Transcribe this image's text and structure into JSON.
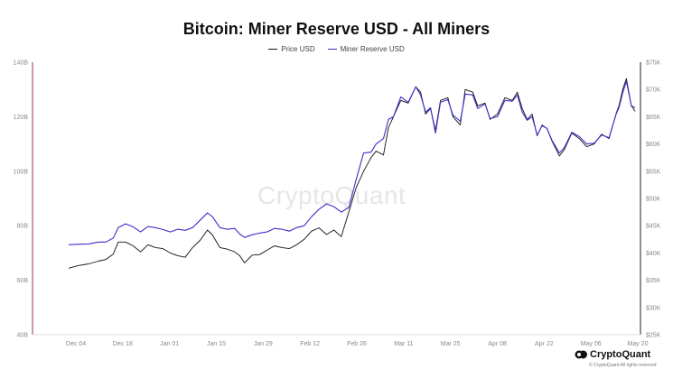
{
  "chart_data": {
    "type": "line",
    "title": "Bitcoin: Miner Reserve USD - All Miners",
    "legend_position": "top-center",
    "watermark": "CryptoQuant",
    "x_ticks": [
      "Dec 04",
      "Dec 18",
      "Jan 01",
      "Jan 15",
      "Jan 29",
      "Feb 12",
      "Feb 26",
      "Mar 11",
      "Mar 25",
      "Apr 08",
      "Apr 22",
      "May 06",
      "May 20"
    ],
    "left_axis": {
      "ticks": [
        "40B",
        "60B",
        "80B",
        "100B",
        "120B",
        "140B"
      ],
      "values": [
        40,
        60,
        80,
        100,
        120,
        140
      ],
      "ylim": [
        40,
        140
      ],
      "unit": "B USD"
    },
    "right_axis": {
      "ticks": [
        "$25K",
        "$30K",
        "$35K",
        "$40K",
        "$45K",
        "$50K",
        "$55K",
        "$60K",
        "$65K",
        "$70K",
        "$75K"
      ],
      "values": [
        25,
        30,
        35,
        40,
        45,
        50,
        55,
        60,
        65,
        70,
        75
      ],
      "ylim": [
        25,
        75
      ],
      "unit": "$K"
    },
    "series": [
      {
        "name": "Price USD",
        "axis": "right",
        "color": "#111111",
        "points": [
          [
            0,
            37.2
          ],
          [
            0.4,
            37.7
          ],
          [
            0.8,
            38.0
          ],
          [
            1.2,
            38.5
          ],
          [
            1.5,
            38.8
          ],
          [
            1.8,
            39.8
          ],
          [
            2.0,
            42.0
          ],
          [
            2.3,
            42.0
          ],
          [
            2.6,
            41.3
          ],
          [
            2.9,
            40.2
          ],
          [
            3.2,
            41.5
          ],
          [
            3.5,
            41.0
          ],
          [
            3.8,
            40.8
          ],
          [
            4.1,
            40.0
          ],
          [
            4.4,
            39.5
          ],
          [
            4.7,
            39.2
          ],
          [
            5.0,
            41.0
          ],
          [
            5.3,
            42.3
          ],
          [
            5.6,
            44.2
          ],
          [
            5.8,
            43.3
          ],
          [
            6.1,
            41.0
          ],
          [
            6.4,
            40.7
          ],
          [
            6.7,
            40.2
          ],
          [
            6.9,
            39.5
          ],
          [
            7.1,
            38.2
          ],
          [
            7.4,
            39.6
          ],
          [
            7.7,
            39.7
          ],
          [
            8.0,
            40.5
          ],
          [
            8.3,
            41.3
          ],
          [
            8.6,
            41.0
          ],
          [
            8.9,
            40.8
          ],
          [
            9.2,
            41.5
          ],
          [
            9.5,
            42.5
          ],
          [
            9.8,
            44.0
          ],
          [
            10.1,
            44.6
          ],
          [
            10.4,
            43.4
          ],
          [
            10.7,
            44.2
          ],
          [
            11.0,
            43.0
          ],
          [
            11.3,
            47.5
          ],
          [
            11.6,
            52.0
          ],
          [
            11.9,
            55.0
          ],
          [
            12.2,
            57.5
          ],
          [
            12.4,
            58.7
          ],
          [
            12.7,
            58.0
          ],
          [
            12.9,
            63.0
          ],
          [
            13.1,
            65.0
          ],
          [
            13.4,
            68.0
          ],
          [
            13.7,
            67.5
          ],
          [
            14.0,
            70.5
          ],
          [
            14.2,
            69.5
          ],
          [
            14.4,
            65.5
          ],
          [
            14.6,
            66.5
          ],
          [
            14.8,
            62.5
          ],
          [
            15.0,
            68.0
          ],
          [
            15.3,
            68.5
          ],
          [
            15.5,
            65.0
          ],
          [
            15.8,
            63.5
          ],
          [
            16.0,
            70.0
          ],
          [
            16.3,
            69.5
          ],
          [
            16.5,
            67.0
          ],
          [
            16.8,
            67.5
          ],
          [
            17.0,
            64.5
          ],
          [
            17.3,
            65.5
          ],
          [
            17.6,
            68.5
          ],
          [
            17.9,
            68.0
          ],
          [
            18.1,
            69.5
          ],
          [
            18.3,
            66.5
          ],
          [
            18.5,
            64.5
          ],
          [
            18.7,
            65.5
          ],
          [
            18.9,
            61.5
          ],
          [
            19.1,
            63.5
          ],
          [
            19.3,
            62.8
          ],
          [
            19.5,
            60.5
          ],
          [
            19.8,
            57.8
          ],
          [
            20.0,
            59.0
          ],
          [
            20.3,
            62.0
          ],
          [
            20.6,
            61.0
          ],
          [
            20.9,
            59.5
          ],
          [
            21.2,
            60.0
          ],
          [
            21.5,
            61.8
          ],
          [
            21.8,
            61.0
          ],
          [
            22.1,
            65.8
          ],
          [
            22.2,
            67.0
          ],
          [
            22.35,
            70.0
          ],
          [
            22.5,
            72.0
          ],
          [
            22.7,
            67.0
          ],
          [
            22.85,
            66.0
          ]
        ]
      },
      {
        "name": "Miner Reserve USD",
        "axis": "left",
        "color": "#3b2fc8",
        "points": [
          [
            0,
            73.0
          ],
          [
            0.4,
            73.2
          ],
          [
            0.8,
            73.3
          ],
          [
            1.2,
            74.0
          ],
          [
            1.5,
            74.0
          ],
          [
            1.8,
            75.5
          ],
          [
            2.0,
            79.3
          ],
          [
            2.3,
            80.7
          ],
          [
            2.6,
            79.6
          ],
          [
            2.9,
            77.7
          ],
          [
            3.2,
            79.7
          ],
          [
            3.5,
            79.3
          ],
          [
            3.8,
            78.6
          ],
          [
            4.1,
            77.7
          ],
          [
            4.4,
            78.7
          ],
          [
            4.7,
            78.3
          ],
          [
            5.0,
            79.3
          ],
          [
            5.3,
            82.0
          ],
          [
            5.6,
            84.7
          ],
          [
            5.8,
            83.3
          ],
          [
            6.1,
            79.3
          ],
          [
            6.4,
            78.7
          ],
          [
            6.7,
            79.0
          ],
          [
            6.9,
            77.0
          ],
          [
            7.1,
            75.7
          ],
          [
            7.4,
            76.7
          ],
          [
            7.7,
            77.3
          ],
          [
            8.0,
            77.7
          ],
          [
            8.3,
            79.0
          ],
          [
            8.6,
            78.7
          ],
          [
            8.9,
            78.0
          ],
          [
            9.2,
            79.3
          ],
          [
            9.5,
            80.0
          ],
          [
            9.8,
            83.3
          ],
          [
            10.1,
            86.0
          ],
          [
            10.4,
            88.0
          ],
          [
            10.7,
            87.0
          ],
          [
            11.0,
            85.0
          ],
          [
            11.3,
            86.7
          ],
          [
            11.6,
            97.0
          ],
          [
            11.9,
            106.7
          ],
          [
            12.2,
            107.0
          ],
          [
            12.4,
            110.0
          ],
          [
            12.7,
            112.0
          ],
          [
            12.9,
            119.0
          ],
          [
            13.1,
            120.0
          ],
          [
            13.4,
            127.3
          ],
          [
            13.7,
            125.3
          ],
          [
            14.0,
            131.0
          ],
          [
            14.2,
            128.0
          ],
          [
            14.4,
            121.7
          ],
          [
            14.6,
            123.3
          ],
          [
            14.8,
            114.0
          ],
          [
            15.0,
            125.3
          ],
          [
            15.3,
            126.3
          ],
          [
            15.5,
            120.7
          ],
          [
            15.8,
            118.3
          ],
          [
            16.0,
            128.3
          ],
          [
            16.3,
            128.0
          ],
          [
            16.5,
            123.0
          ],
          [
            16.8,
            124.7
          ],
          [
            17.0,
            119.3
          ],
          [
            17.3,
            120.0
          ],
          [
            17.6,
            126.0
          ],
          [
            17.9,
            125.7
          ],
          [
            18.1,
            128.0
          ],
          [
            18.3,
            121.7
          ],
          [
            18.5,
            118.7
          ],
          [
            18.7,
            120.0
          ],
          [
            18.9,
            113.3
          ],
          [
            19.1,
            116.7
          ],
          [
            19.3,
            115.7
          ],
          [
            19.5,
            111.3
          ],
          [
            19.8,
            106.7
          ],
          [
            20.0,
            108.7
          ],
          [
            20.3,
            114.3
          ],
          [
            20.6,
            112.7
          ],
          [
            20.9,
            110.0
          ],
          [
            21.2,
            110.3
          ],
          [
            21.5,
            113.3
          ],
          [
            21.8,
            112.3
          ],
          [
            22.1,
            121.3
          ],
          [
            22.2,
            123.3
          ],
          [
            22.35,
            128.7
          ],
          [
            22.5,
            133.0
          ],
          [
            22.7,
            124.0
          ],
          [
            22.85,
            123.3
          ]
        ]
      }
    ]
  },
  "brand": {
    "name": "CryptoQuant",
    "tagline": "© CryptoQuant All rights reserved"
  }
}
